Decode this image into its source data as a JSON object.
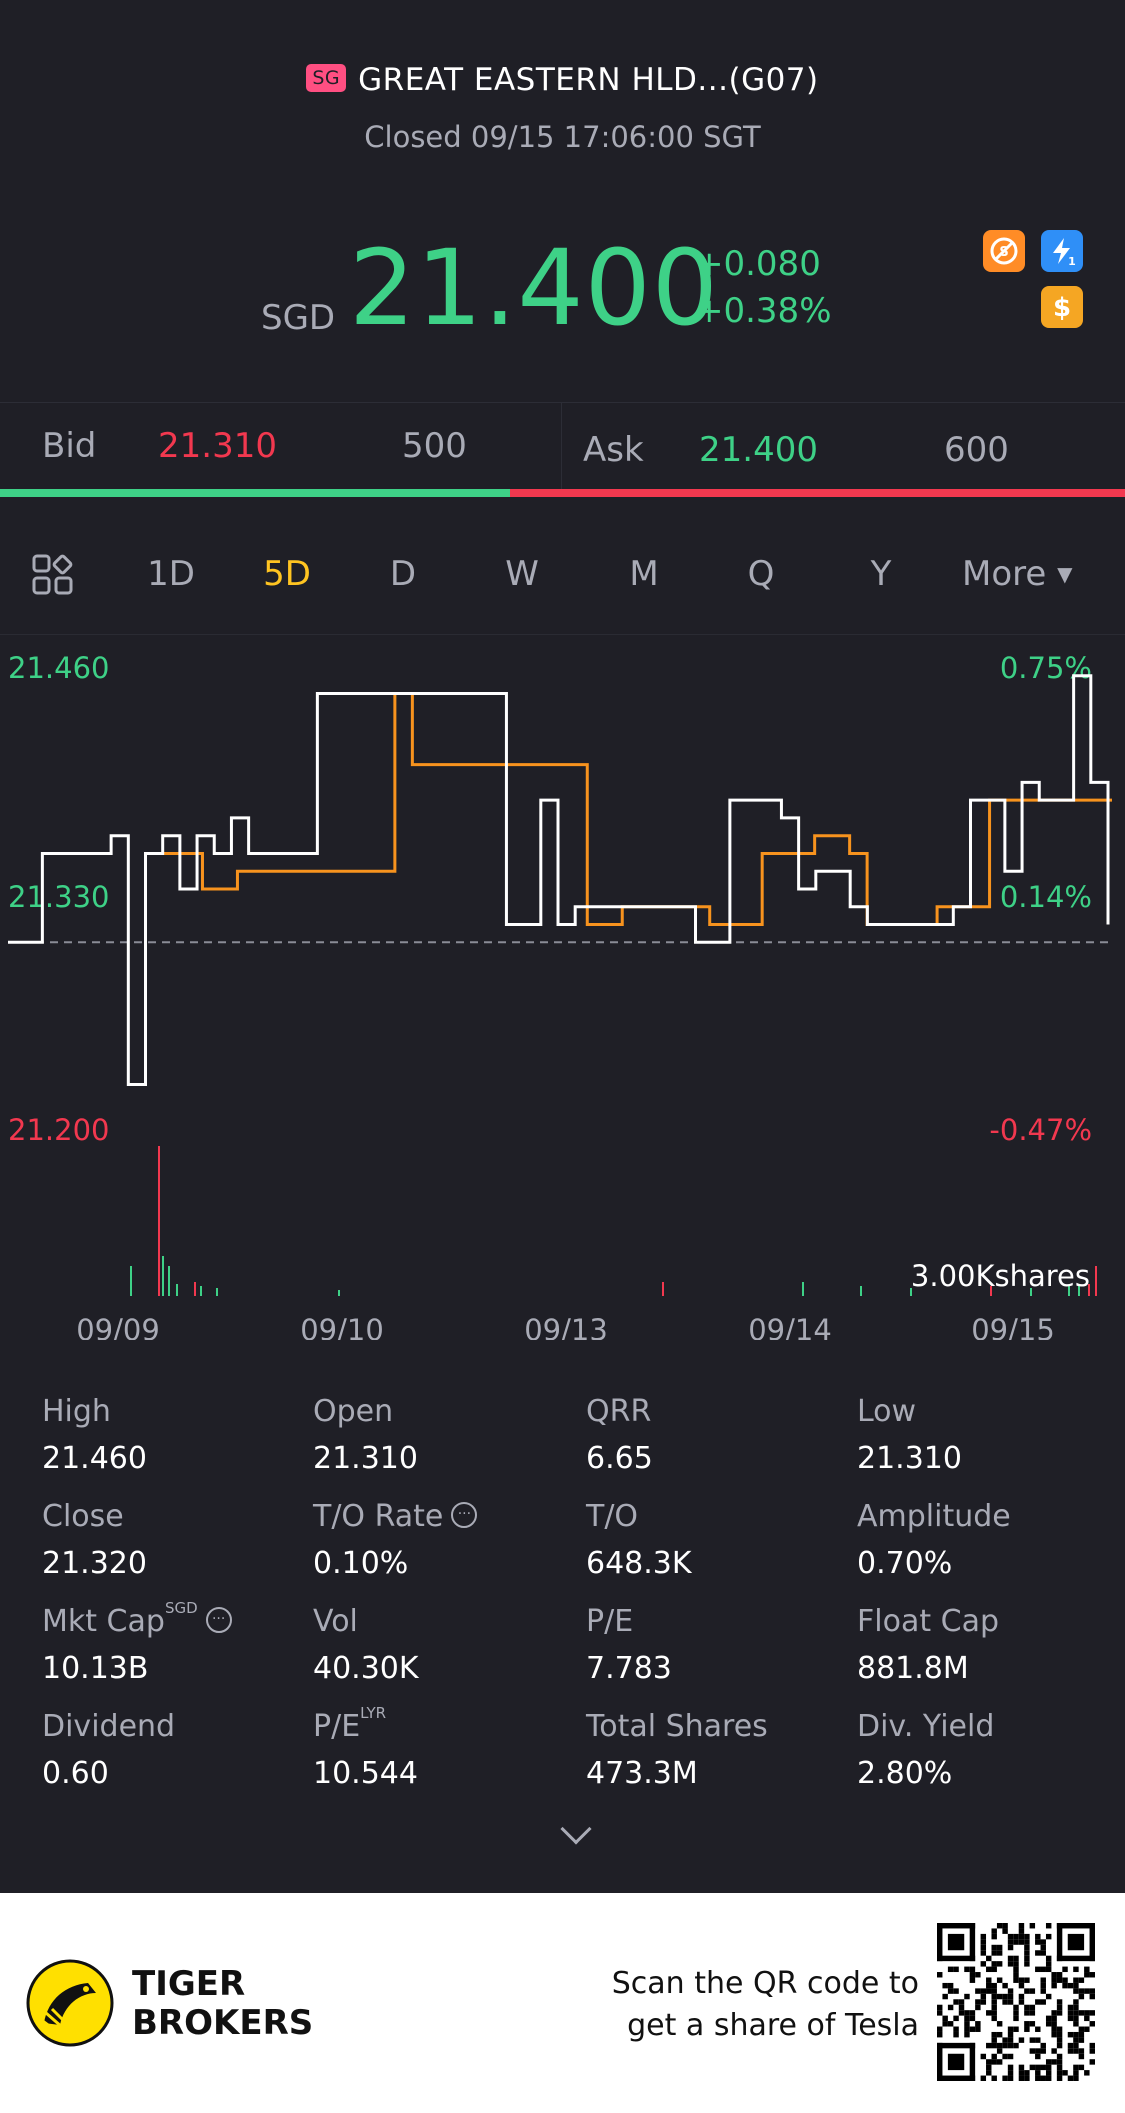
{
  "header": {
    "market_badge": "SG",
    "stock_title": "GREAT EASTERN HLD...(G07)",
    "status": "Closed 09/15 17:06:00 SGT",
    "currency": "SGD",
    "price": "21.400",
    "change": "+0.080",
    "change_pct": "+0.38%",
    "icons": [
      "no-short-sell-icon",
      "level1-flash-icon",
      "dollar-icon"
    ]
  },
  "bid_ask": {
    "bid_label": "Bid",
    "bid_price": "21.310",
    "bid_qty": "500",
    "ask_label": "Ask",
    "ask_price": "21.400",
    "ask_qty": "600",
    "bid_share": 0.453
  },
  "tabs": [
    {
      "label": "1D"
    },
    {
      "label": "5D"
    },
    {
      "label": "D"
    },
    {
      "label": "W"
    },
    {
      "label": "M"
    },
    {
      "label": "Q"
    },
    {
      "label": "Y"
    },
    {
      "label": "More"
    }
  ],
  "active_tab": "5D",
  "chart_data": {
    "type": "line",
    "x_labels": [
      "09/09",
      "09/10",
      "09/13",
      "09/14",
      "09/15"
    ],
    "y_left_labels": [
      "21.460",
      "21.330",
      "21.200"
    ],
    "y_right_labels": [
      "0.75%",
      "0.14%",
      "-0.47%"
    ],
    "ylim": [
      21.2,
      21.46
    ],
    "prev_close": 21.3,
    "volume_label": "3.00Kshares",
    "series": [
      {
        "values": [
          21.3,
          21.3,
          21.35,
          21.35,
          21.35,
          21.35,
          21.36,
          21.22,
          21.35,
          21.36,
          21.33,
          21.36,
          21.35,
          21.37,
          21.35,
          21.35,
          21.35,
          21.35,
          21.44,
          21.44,
          21.44,
          21.44,
          21.44,
          21.44,
          21.44,
          21.44,
          21.44,
          21.44,
          21.44,
          21.31,
          21.31,
          21.38,
          21.31,
          21.32,
          21.32,
          21.32,
          21.32,
          21.32,
          21.32,
          21.32,
          21.3,
          21.3,
          21.38,
          21.38,
          21.38,
          21.37,
          21.33,
          21.34,
          21.34,
          21.32,
          21.31,
          21.31,
          21.31,
          21.31,
          21.31,
          21.32,
          21.38,
          21.38,
          21.34,
          21.39,
          21.38,
          21.38,
          21.45,
          21.39,
          21.31
        ]
      },
      {
        "values": [
          21.35,
          21.35,
          21.35,
          21.33,
          21.33,
          21.34,
          21.34,
          21.34,
          21.34,
          21.34,
          21.34,
          21.34,
          21.34,
          21.34,
          21.44,
          21.4,
          21.4,
          21.4,
          21.4,
          21.4,
          21.4,
          21.4,
          21.4,
          21.4,
          21.4,
          21.31,
          21.31,
          21.32,
          21.32,
          21.32,
          21.32,
          21.32,
          21.31,
          21.31,
          21.31,
          21.35,
          21.35,
          21.35,
          21.36,
          21.36,
          21.35,
          21.31,
          21.31,
          21.31,
          21.31,
          21.32,
          21.32,
          21.32,
          21.38,
          21.38,
          21.38,
          21.38,
          21.38,
          21.38,
          21.38,
          21.38
        ]
      }
    ]
  },
  "stats": [
    {
      "label": "High",
      "value": "21.460"
    },
    {
      "label": "Open",
      "value": "21.310"
    },
    {
      "label": "QRR",
      "value": "6.65"
    },
    {
      "label": "Low",
      "value": "21.310"
    },
    {
      "label": "Close",
      "value": "21.320"
    },
    {
      "label": "T/O Rate",
      "value": "0.10%"
    },
    {
      "label": "T/O",
      "value": "648.3K"
    },
    {
      "label": "Amplitude",
      "value": "0.70%"
    },
    {
      "label": "Mkt Cap",
      "value": "10.13B",
      "sup": "SGD"
    },
    {
      "label": "Vol",
      "value": "40.30K"
    },
    {
      "label": "P/E",
      "value": "7.783"
    },
    {
      "label": "Float Cap",
      "value": "881.8M"
    },
    {
      "label": "Dividend",
      "value": "0.60"
    },
    {
      "label": "P/E",
      "value": "10.544",
      "sup": "LYR"
    },
    {
      "label": "Total Shares",
      "value": "473.3M"
    },
    {
      "label": "Div. Yield",
      "value": "2.80%"
    }
  ],
  "footer": {
    "brand_line1": "TIGER",
    "brand_line2": "BROKERS",
    "scan_line1": "Scan the QR code to",
    "scan_line2": "get a share of Tesla"
  },
  "colors": {
    "up": "#3ed187",
    "down": "#f2384f",
    "accent": "#ffc421",
    "avg": "#f7931e"
  }
}
